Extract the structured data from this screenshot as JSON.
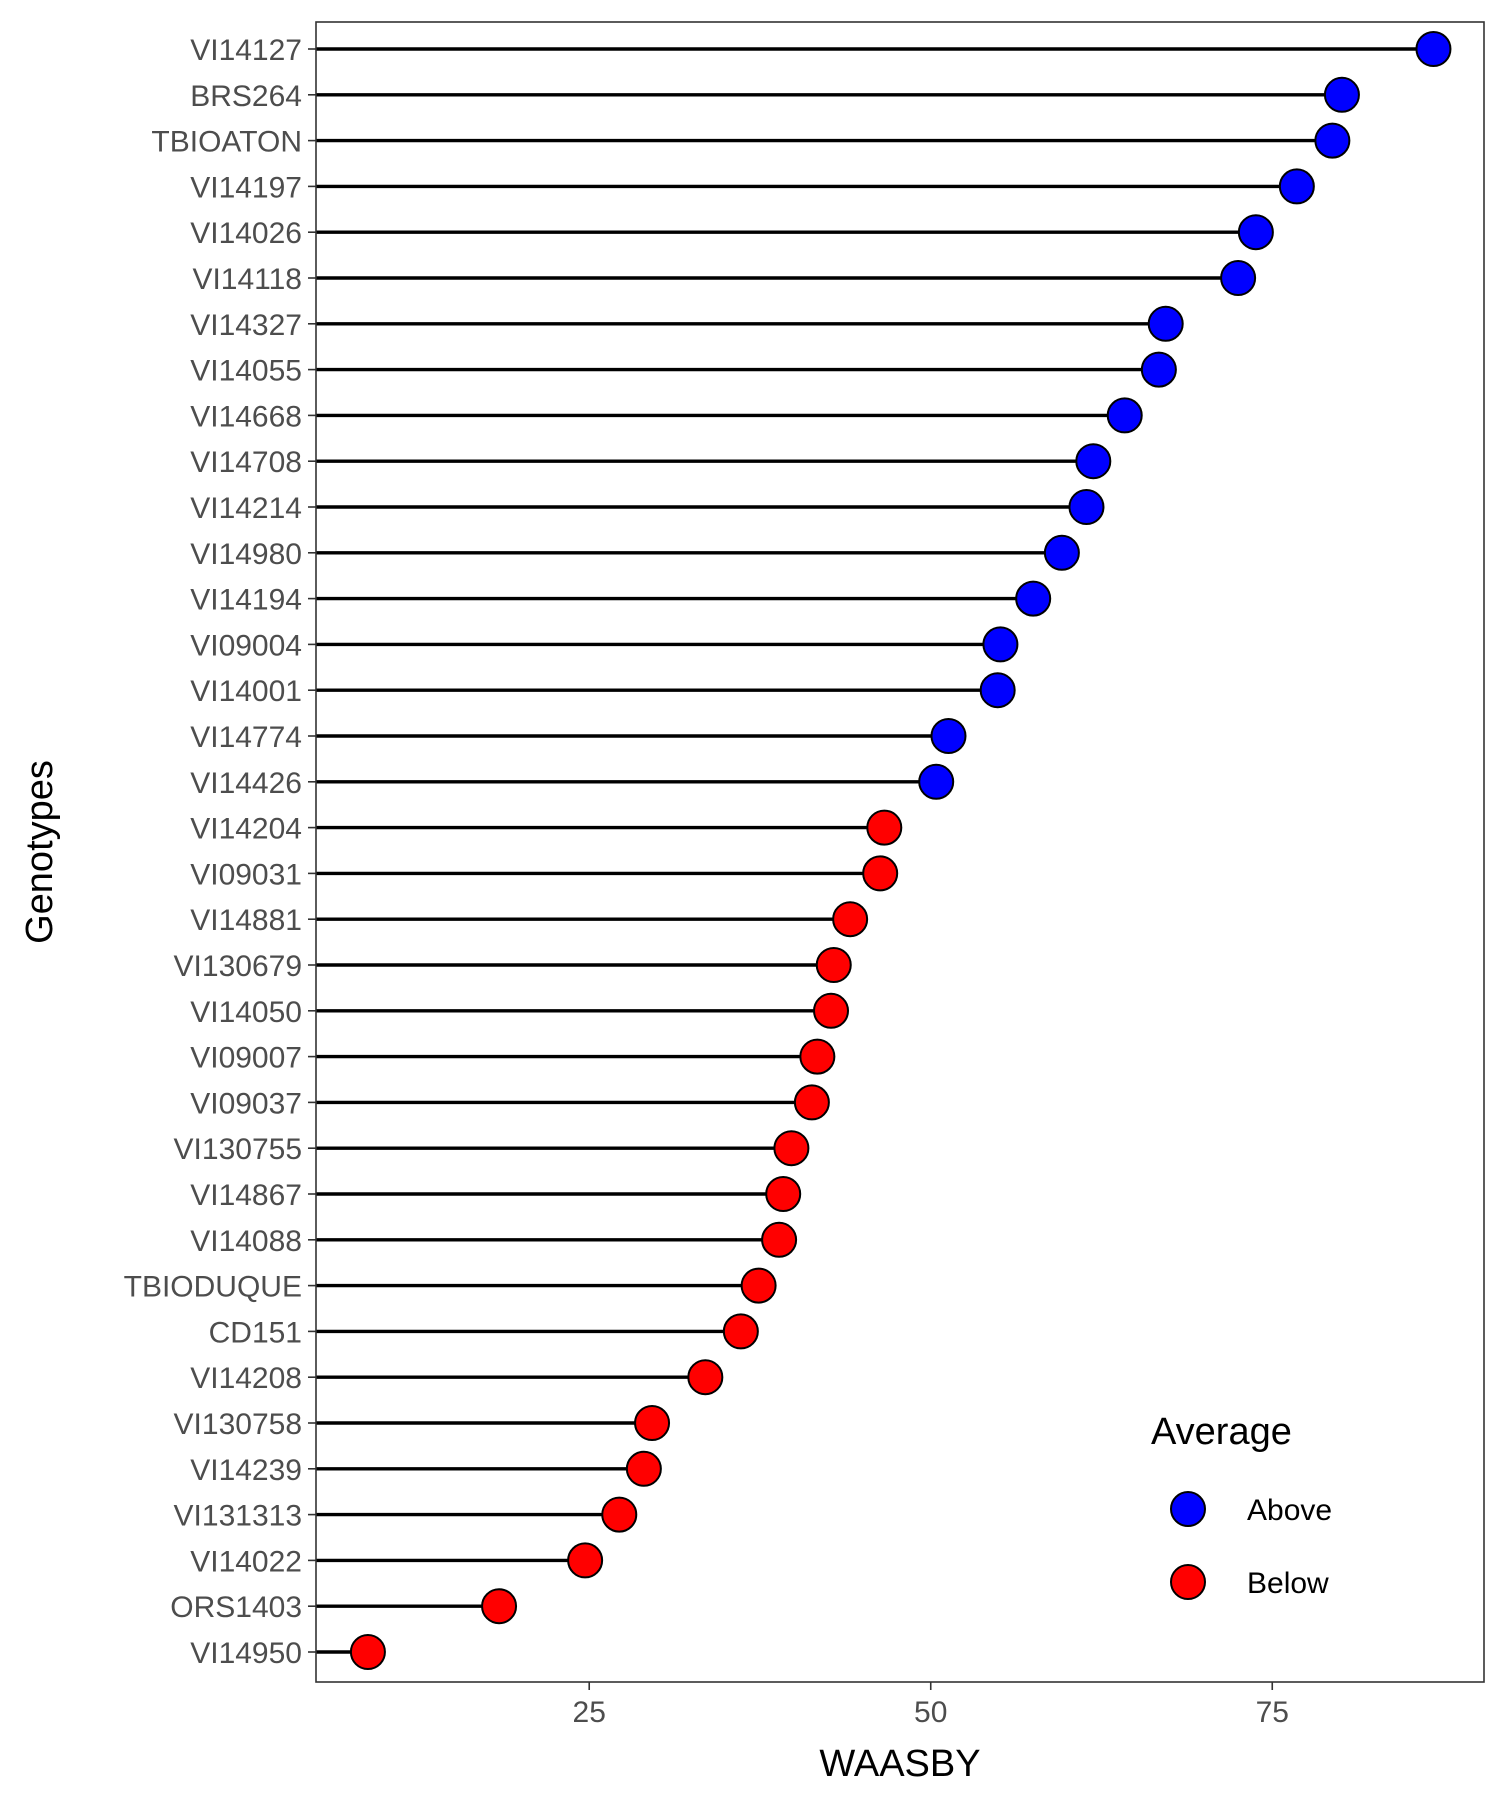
{
  "chart_data": {
    "type": "lollipop",
    "xlabel": "WAASBY",
    "ylabel": "Genotypes",
    "xlim": [
      5,
      90.5
    ],
    "xticks": [
      25,
      50,
      75
    ],
    "legend": {
      "title": "Average",
      "position": "bottom-right-inside",
      "entries": [
        {
          "label": "Above",
          "color": "#0000ff"
        },
        {
          "label": "Below",
          "color": "#ff0000"
        }
      ]
    },
    "grid": false,
    "points": [
      {
        "genotype": "VI14127",
        "value": 86.8,
        "group": "Above"
      },
      {
        "genotype": "BRS264",
        "value": 80.1,
        "group": "Above"
      },
      {
        "genotype": "TBIOATON",
        "value": 79.4,
        "group": "Above"
      },
      {
        "genotype": "VI14197",
        "value": 76.8,
        "group": "Above"
      },
      {
        "genotype": "VI14026",
        "value": 73.8,
        "group": "Above"
      },
      {
        "genotype": "VI14118",
        "value": 72.5,
        "group": "Above"
      },
      {
        "genotype": "VI14327",
        "value": 67.2,
        "group": "Above"
      },
      {
        "genotype": "VI14055",
        "value": 66.7,
        "group": "Above"
      },
      {
        "genotype": "VI14668",
        "value": 64.2,
        "group": "Above"
      },
      {
        "genotype": "VI14708",
        "value": 61.9,
        "group": "Above"
      },
      {
        "genotype": "VI14214",
        "value": 61.4,
        "group": "Above"
      },
      {
        "genotype": "VI14980",
        "value": 59.6,
        "group": "Above"
      },
      {
        "genotype": "VI14194",
        "value": 57.5,
        "group": "Above"
      },
      {
        "genotype": "VI09004",
        "value": 55.1,
        "group": "Above"
      },
      {
        "genotype": "VI14001",
        "value": 54.9,
        "group": "Above"
      },
      {
        "genotype": "VI14774",
        "value": 51.3,
        "group": "Above"
      },
      {
        "genotype": "VI14426",
        "value": 50.4,
        "group": "Above"
      },
      {
        "genotype": "VI14204",
        "value": 46.6,
        "group": "Below"
      },
      {
        "genotype": "VI09031",
        "value": 46.3,
        "group": "Below"
      },
      {
        "genotype": "VI14881",
        "value": 44.1,
        "group": "Below"
      },
      {
        "genotype": "VI130679",
        "value": 42.9,
        "group": "Below"
      },
      {
        "genotype": "VI14050",
        "value": 42.7,
        "group": "Below"
      },
      {
        "genotype": "VI09007",
        "value": 41.7,
        "group": "Below"
      },
      {
        "genotype": "VI09037",
        "value": 41.3,
        "group": "Below"
      },
      {
        "genotype": "VI130755",
        "value": 39.8,
        "group": "Below"
      },
      {
        "genotype": "VI14867",
        "value": 39.2,
        "group": "Below"
      },
      {
        "genotype": "VI14088",
        "value": 38.9,
        "group": "Below"
      },
      {
        "genotype": "TBIODUQUE",
        "value": 37.4,
        "group": "Below"
      },
      {
        "genotype": "CD151",
        "value": 36.1,
        "group": "Below"
      },
      {
        "genotype": "VI14208",
        "value": 33.5,
        "group": "Below"
      },
      {
        "genotype": "VI130758",
        "value": 29.6,
        "group": "Below"
      },
      {
        "genotype": "VI14239",
        "value": 29.0,
        "group": "Below"
      },
      {
        "genotype": "VI131313",
        "value": 27.2,
        "group": "Below"
      },
      {
        "genotype": "VI14022",
        "value": 24.7,
        "group": "Below"
      },
      {
        "genotype": "ORS1403",
        "value": 18.4,
        "group": "Below"
      },
      {
        "genotype": "VI14950",
        "value": 8.8,
        "group": "Below"
      }
    ]
  }
}
